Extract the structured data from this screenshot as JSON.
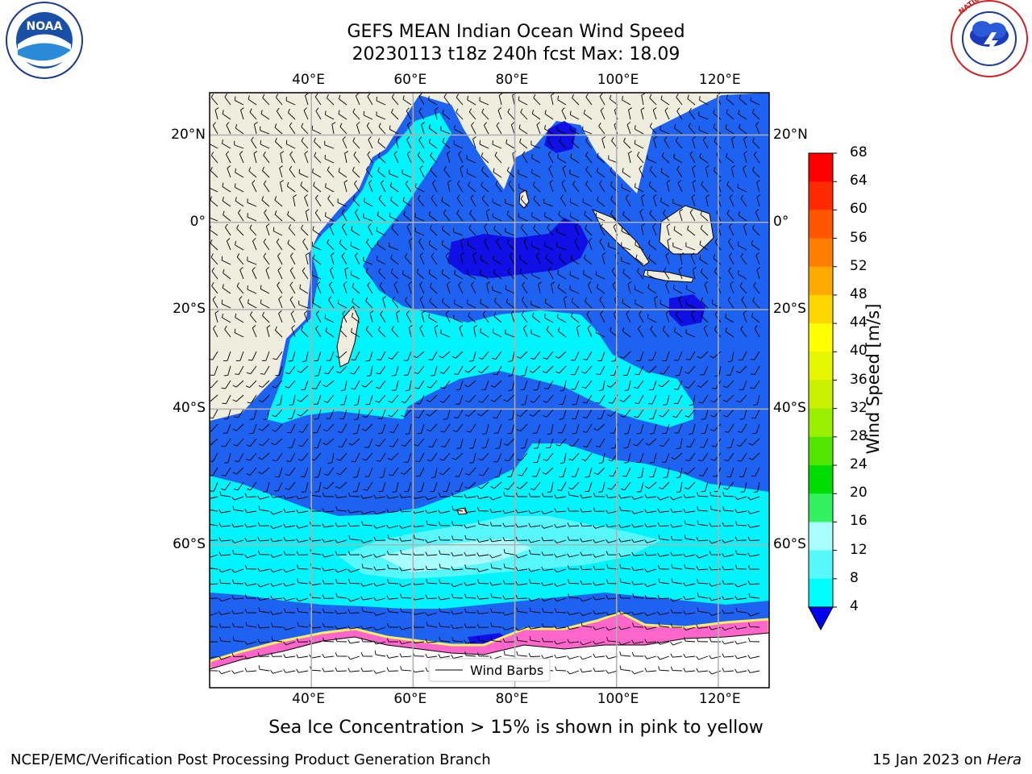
{
  "title": {
    "line1": "GEFS MEAN Indian Ocean Wind Speed",
    "line2": "20230113 t18z 240h fcst   Max: 18.09"
  },
  "logos": {
    "left": "NOAA",
    "left_ring_text": "NATIONAL OCEANIC AND ATMOSPHERIC ADMINISTRATION · U.S. DEPARTMENT OF COMMERCE",
    "right_ring_text": "NATIONAL WEATHER SERVICE"
  },
  "axes": {
    "top_x_ticks": [
      "40°E",
      "60°E",
      "80°E",
      "100°E",
      "120°E"
    ],
    "bottom_x_ticks": [
      "40°E",
      "60°E",
      "80°E",
      "100°E",
      "120°E"
    ],
    "left_y_ticks": [
      "20°N",
      "0°",
      "20°S",
      "40°S",
      "60°S"
    ],
    "right_y_ticks": [
      "20°N",
      "0°",
      "20°S",
      "40°S",
      "60°S"
    ]
  },
  "legend": {
    "label": "Wind Barbs"
  },
  "colorbar": {
    "label": "Wind Speed [m/s]",
    "ticks": [
      "68",
      "64",
      "60",
      "56",
      "52",
      "48",
      "44",
      "40",
      "36",
      "32",
      "28",
      "24",
      "20",
      "16",
      "12",
      "8",
      "4"
    ],
    "colors": [
      "#ff0000",
      "#ff2a00",
      "#ff5500",
      "#ff8000",
      "#ffaa00",
      "#ffd500",
      "#ffff00",
      "#e6f500",
      "#c8f000",
      "#9aee00",
      "#50e600",
      "#00dc00",
      "#33f060",
      "#4cf58a",
      "#a8fdfd",
      "#55f8fb",
      "#00fdfd",
      "#0099ff",
      "#0066ff",
      "#0000ee"
    ]
  },
  "map": {
    "lon_range": [
      20,
      130
    ],
    "lat_range": [
      -73,
      29
    ],
    "colors": {
      "land": "#efedde",
      "ice_land": "#ffffff",
      "band_4_8": "#1e62f2",
      "band_8_12": "#00f4fb",
      "band_12_16": "#57f7fb",
      "band_16_20": "#a8fcfb",
      "band_lt4": "#1010e6",
      "ice_pink": "#ff66cc",
      "ice_yellow": "#ffee66",
      "grid": "#b0b0b0"
    }
  },
  "caption": "Sea Ice Concentration > 15% is shown in pink to yellow",
  "footer": {
    "left": "NCEP/EMC/Verification Post Processing Product Generation Branch",
    "right_prefix": "15 Jan 2023 on ",
    "right_host": "Hera"
  }
}
